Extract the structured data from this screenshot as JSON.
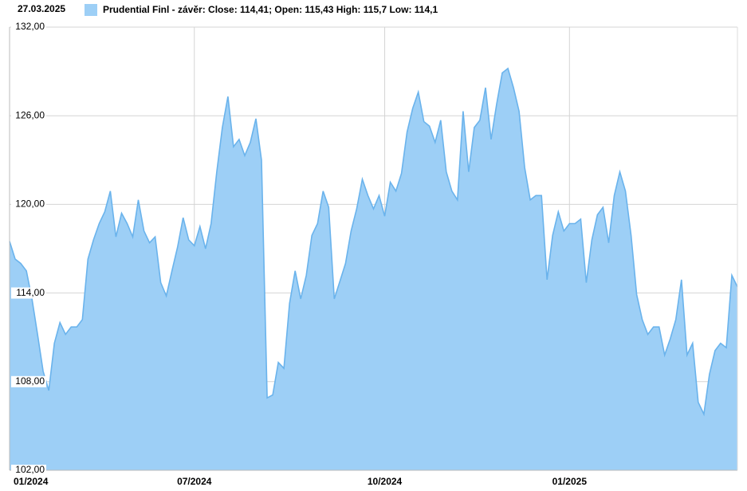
{
  "chart_data": {
    "type": "area",
    "date": "27.03.2025",
    "categories": [
      "01/2024",
      null,
      null,
      null,
      null,
      null,
      null,
      null,
      null,
      null,
      null,
      null,
      null,
      null,
      null,
      null,
      null,
      null,
      null,
      null,
      null,
      null,
      null,
      null,
      null,
      null,
      null,
      null,
      null,
      null,
      null,
      null,
      null,
      "07/2024",
      null,
      null,
      null,
      null,
      null,
      null,
      null,
      null,
      null,
      null,
      null,
      null,
      null,
      null,
      null,
      null,
      null,
      null,
      null,
      null,
      null,
      null,
      null,
      null,
      null,
      null,
      null,
      null,
      null,
      null,
      null,
      null,
      null,
      "10/2024",
      null,
      null,
      null,
      null,
      null,
      null,
      null,
      null,
      null,
      null,
      null,
      null,
      null,
      null,
      null,
      null,
      null,
      null,
      null,
      null,
      null,
      null,
      null,
      null,
      null,
      null,
      null,
      null,
      null,
      null,
      null,
      null,
      "01/2025",
      null,
      null,
      null,
      null,
      null,
      null,
      null,
      null,
      null,
      null,
      null,
      null,
      null,
      null,
      null,
      null,
      null,
      null,
      null,
      null,
      null,
      null,
      null,
      null,
      null,
      null,
      null,
      null,
      null,
      null
    ],
    "series": [
      {
        "name": "Prudential Finl - závěr: Close: 114,41; Open: 115,43 High: 115,7 Low: 114,1",
        "color": "#9dcff6",
        "line_color": "#6ab3ec",
        "values": [
          117.5,
          116.3,
          116.0,
          115.5,
          113.6,
          111.2,
          108.7,
          107.4,
          110.6,
          112.0,
          111.2,
          111.7,
          111.7,
          112.2,
          116.3,
          117.6,
          118.7,
          119.5,
          120.9,
          117.8,
          119.4,
          118.7,
          117.8,
          120.3,
          118.2,
          117.4,
          117.8,
          114.7,
          113.8,
          115.5,
          117.1,
          119.1,
          117.6,
          117.2,
          118.5,
          117.0,
          118.7,
          122.2,
          125.2,
          127.3,
          123.9,
          124.4,
          123.3,
          124.2,
          125.8,
          123.0,
          106.9,
          107.1,
          109.3,
          108.9,
          113.3,
          115.5,
          113.6,
          115.2,
          117.9,
          118.7,
          120.9,
          119.8,
          113.6,
          114.8,
          116.0,
          118.2,
          119.7,
          121.7,
          120.6,
          119.7,
          120.6,
          119.2,
          121.5,
          120.9,
          122.1,
          124.9,
          126.5,
          127.6,
          125.6,
          125.3,
          124.2,
          125.7,
          122.2,
          120.9,
          120.3,
          126.3,
          122.2,
          125.2,
          125.7,
          127.9,
          124.4,
          126.8,
          128.9,
          129.2,
          127.9,
          126.3,
          122.5,
          120.3,
          120.6,
          120.6,
          114.9,
          117.9,
          119.5,
          118.2,
          118.7,
          118.7,
          119.0,
          114.7,
          117.6,
          119.3,
          119.8,
          117.4,
          120.6,
          122.2,
          120.9,
          117.9,
          113.9,
          112.2,
          111.2,
          111.7,
          111.7,
          109.8,
          110.9,
          112.2,
          114.9,
          109.8,
          110.6,
          106.6,
          105.8,
          108.5,
          110.1,
          110.6,
          110.3,
          115.2,
          114.41
        ]
      }
    ],
    "ylim": [
      102,
      132
    ],
    "yticks": [
      {
        "value": 102,
        "label": "102,00"
      },
      {
        "value": 108,
        "label": "108,00"
      },
      {
        "value": 114,
        "label": "114,00"
      },
      {
        "value": 120,
        "label": "120,00"
      },
      {
        "value": 126,
        "label": "126,00"
      },
      {
        "value": 132,
        "label": "132,00"
      }
    ],
    "grid": true
  }
}
